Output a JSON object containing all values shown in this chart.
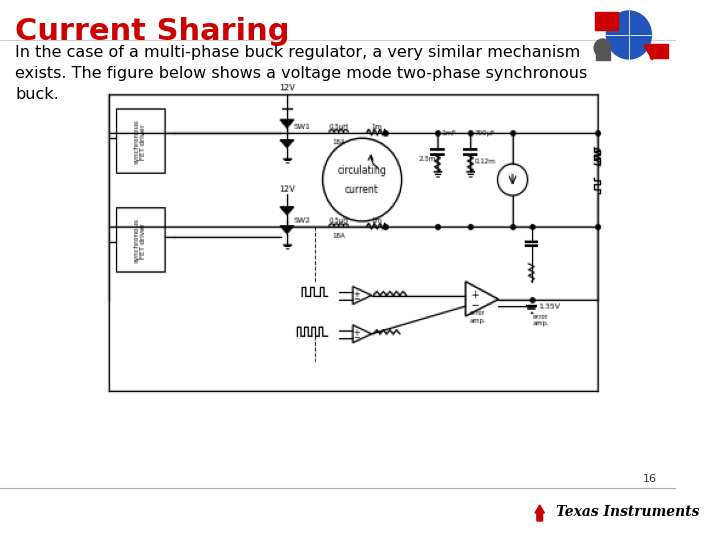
{
  "title": "Current Sharing",
  "title_color": "#cc0000",
  "title_fontsize": 22,
  "body_text": "In the case of a multi-phase buck regulator, a very similar mechanism\nexists. The figure below shows a voltage mode two-phase synchronous\nbuck.",
  "body_fontsize": 11.5,
  "body_color": "#000000",
  "slide_bg": "#ffffff",
  "page_number": "16",
  "footer_text": "Texas Instruments",
  "footer_logo_color": "#cc0000"
}
